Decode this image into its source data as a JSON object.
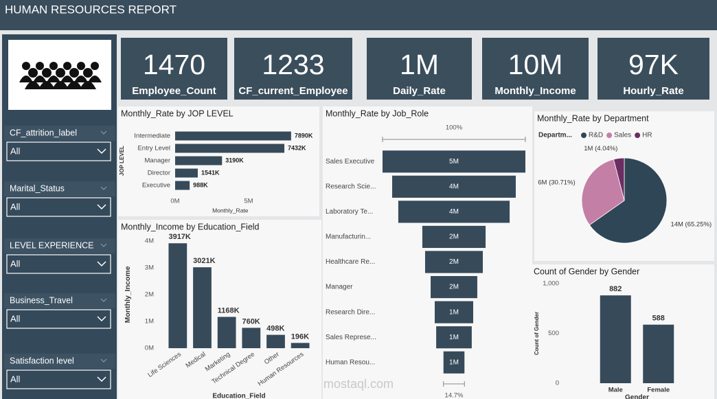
{
  "header": {
    "title": "HUMAN RESOURCES REPORT"
  },
  "kpis": [
    {
      "value": "1470",
      "label": "Employee_Count"
    },
    {
      "value": "1233",
      "label": "CF_current_Employee"
    },
    {
      "value": "1M",
      "label": "Daily_Rate"
    },
    {
      "value": "10M",
      "label": "Monthly_Income"
    },
    {
      "value": "97K",
      "label": "Hourly_Rate"
    }
  ],
  "slicers": [
    {
      "label": "CF_attrition_label",
      "value": "All"
    },
    {
      "label": "Marital_Status",
      "value": "All"
    },
    {
      "label": "LEVEL EXPERIENCE",
      "value": "All"
    },
    {
      "label": "Business_Travel",
      "value": "All"
    },
    {
      "label": "Satisfaction level",
      "value": "All"
    }
  ],
  "watermark": "mostaql.com",
  "chart_data": [
    {
      "type": "bar",
      "horizontal": true,
      "title": "Monthly_Rate by JOP LEVEL",
      "categories": [
        "Intermediate",
        "Entry Level",
        "Manager",
        "Director",
        "Executive"
      ],
      "values": [
        7890000,
        7432000,
        3190000,
        1541000,
        988000
      ],
      "value_labels": [
        "7890K",
        "7432K",
        "3190K",
        "1541K",
        "988K"
      ],
      "color": "#364a5a",
      "x_label": "Monthly_Rate",
      "y_label": "JOP LEVEL",
      "xlim": [
        0,
        9000000
      ],
      "xticks": [
        {
          "value": 0,
          "label": "0M"
        },
        {
          "value": 5000000,
          "label": "5M"
        }
      ]
    },
    {
      "type": "funnel",
      "title": "Monthly_Rate by Job_Role",
      "categories": [
        "Sales Executive",
        "Research Scie...",
        "Laboratory Te...",
        "Manufacturin...",
        "Healthcare Re...",
        "Manager",
        "Research Dire...",
        "Sales Represe...",
        "Human Resou..."
      ],
      "values": [
        4900000,
        4240000,
        3820000,
        2170000,
        1980000,
        1600000,
        1320000,
        1220000,
        720000
      ],
      "value_labels": [
        "5M",
        "4M",
        "4M",
        "2M",
        "2M",
        "2M",
        "1M",
        "1M",
        "1M"
      ],
      "color": "#364a5a",
      "top_percent": "100%",
      "bottom_percent": "14.7%"
    },
    {
      "type": "bar",
      "title": "Monthly_Income by Education_Field",
      "categories": [
        "Life Sciences",
        "Medical",
        "Marketing",
        "Technical Degree",
        "Other",
        "Human Resources"
      ],
      "values": [
        3917000,
        3021000,
        1168000,
        760000,
        498000,
        196000
      ],
      "value_labels": [
        "3917K",
        "3021K",
        "1168K",
        "760K",
        "498K",
        "196K"
      ],
      "color": "#364a5a",
      "x_label": "Education_Field",
      "y_label": "Monthly_Income",
      "ylim": [
        0,
        4000000
      ],
      "yticks": [
        {
          "value": 0,
          "label": "0M"
        },
        {
          "value": 1000000,
          "label": "1M"
        },
        {
          "value": 2000000,
          "label": "2M"
        },
        {
          "value": 3000000,
          "label": "3M"
        },
        {
          "value": 4000000,
          "label": "4M"
        }
      ]
    },
    {
      "type": "pie",
      "title": "Monthly_Rate by Department",
      "legend_title": "Departm...",
      "legend": "top",
      "categories": [
        "R&D",
        "Sales",
        "HR"
      ],
      "values": [
        65.25,
        30.71,
        4.04
      ],
      "value_labels": [
        "14M (65.25%)",
        "6M (30.71%)",
        "1M (4.04%)"
      ],
      "colors": [
        "#2f4657",
        "#c47fa6",
        "#6a2e62"
      ]
    },
    {
      "type": "bar",
      "title": "Count of Gender by Gender",
      "categories": [
        "Male",
        "Female"
      ],
      "values": [
        882,
        588
      ],
      "color": "#364a5a",
      "x_label": "Gender",
      "y_label": "Count of Gender",
      "ylim": [
        0,
        1000
      ],
      "yticks": [
        0,
        500,
        {
          "value": 1000,
          "label": "1,000"
        }
      ]
    }
  ]
}
